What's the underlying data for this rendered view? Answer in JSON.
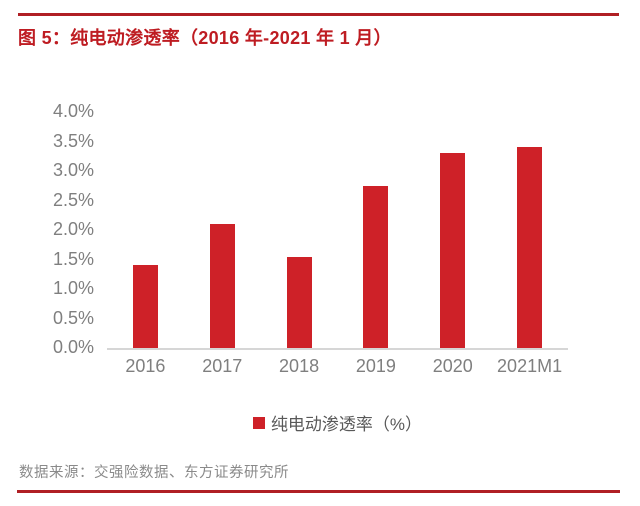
{
  "figure": {
    "title": "图 5：纯电动渗透率（2016 年-2021 年 1 月）",
    "source_note": "数据来源：交强险数据、东方证券研究所"
  },
  "legend": {
    "marker_icon": "red-square-icon",
    "label": "纯电动渗透率（%）"
  },
  "colors": {
    "bar_red": "#CE2128",
    "title_red": "#BE1C22",
    "rule_red": "#B01F24",
    "axis_text_gray": "#7F7F7F",
    "legend_text_gray": "#595959",
    "source_text_gray": "#8A8A8A",
    "axis_line_gray": "#D6D6D6"
  },
  "chart_data": {
    "type": "bar",
    "title": "纯电动渗透率（2016 年-2021 年 1 月）",
    "categories": [
      "2016",
      "2017",
      "2018",
      "2019",
      "2020",
      "2021M1"
    ],
    "series": [
      {
        "name": "纯电动渗透率（%）",
        "values": [
          1.4,
          2.1,
          1.55,
          2.75,
          3.3,
          3.4
        ]
      }
    ],
    "unit": "%",
    "xlabel": "",
    "ylabel": "",
    "ylim": [
      0,
      4
    ],
    "ytick_step": 0.5,
    "ytick_labels": [
      "4.0%",
      "3.5%",
      "3.0%",
      "2.5%",
      "2.0%",
      "1.5%",
      "1.0%",
      "0.5%",
      "0.0%"
    ],
    "grid": false,
    "legend_position": "bottom",
    "bar_color": "#CE2128"
  }
}
